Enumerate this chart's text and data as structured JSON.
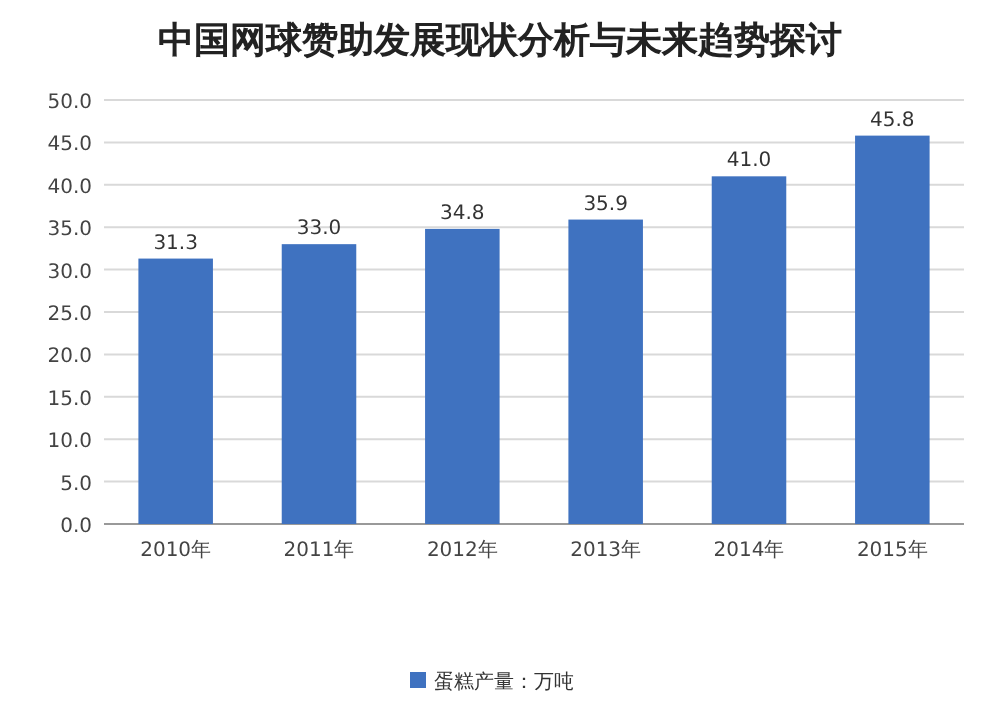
{
  "chart_data": {
    "type": "bar",
    "title": "中国网球赞助发展现状分析与未来趋势探讨",
    "categories": [
      "2010年",
      "2011年",
      "2012年",
      "2013年",
      "2014年",
      "2015年"
    ],
    "series": [
      {
        "name": "蛋糕产量：万吨",
        "color": "#3f72c0",
        "values": [
          31.3,
          33.0,
          34.8,
          35.9,
          41.0,
          45.8
        ]
      }
    ],
    "ylim": [
      0,
      50
    ],
    "yticks": [
      {
        "value": 0,
        "label": "0.0"
      },
      {
        "value": 5,
        "label": "5.0"
      },
      {
        "value": 10,
        "label": "10.0"
      },
      {
        "value": 15,
        "label": "15.0"
      },
      {
        "value": 20,
        "label": "20.0"
      },
      {
        "value": 25,
        "label": "25.0"
      },
      {
        "value": 30,
        "label": "30.0"
      },
      {
        "value": 35,
        "label": "35.0"
      },
      {
        "value": 40,
        "label": "40.0"
      },
      {
        "value": 45,
        "label": "45.0"
      },
      {
        "value": 50,
        "label": "50.0"
      }
    ],
    "value_labels": [
      "31.3",
      "33.0",
      "34.8",
      "35.9",
      "41.0",
      "45.8"
    ],
    "grid": "y",
    "legend": "bottom"
  }
}
